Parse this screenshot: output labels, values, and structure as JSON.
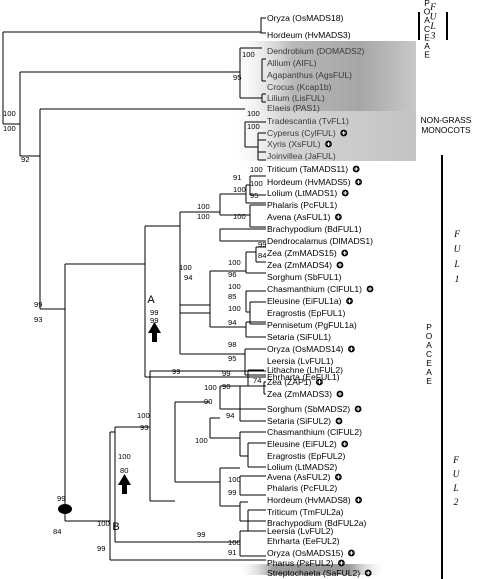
{
  "taxa": {
    "t0": "Oryza (OsMADS18)",
    "t1": "Hordeum (HvMADS3)",
    "t2": "Dendrobium (DOMADS2)",
    "t3": "Allium (AIFL)",
    "t4": "Agapanthus (AgsFUL)",
    "t5": "Crocus (Kcap1b)",
    "t6": "Lilium (LisFUL)",
    "t7": "Elaeis (PAS1)",
    "t8": "Tradescantia (TvFL1)",
    "t9": "Cyperus (CylFUL)",
    "t10": "Xyris (XsFUL)",
    "t11": "Joinvillea (JaFUL)",
    "t12": "Triticum (TaMADS11)",
    "t13": "Hordeum (HvMADS5)",
    "t14": "Lolium (LtMADS1)",
    "t15": "Phalaris (PcFUL1)",
    "t16": "Avena (AsFUL1)",
    "t17": "Brachypodium (BdFUL1)",
    "t18": "Dendrocalamus (DlMADS1)",
    "t19": "Zea (ZmMADS15)",
    "t20": "Zea (ZmMADS4)",
    "t21": "Sorghum (SbFUL1)",
    "t22": "Chasmanthium (ClFUL1)",
    "t23": "Eleusine (EiFUL1a)",
    "t24": "Eragrostis (EpFUL1)",
    "t25": "Pennisetum (PgFUL1a)",
    "t26": "Setaria (SiFUL1)",
    "t27": "Oryza (OsMADS14)",
    "t28": "Leersia (LvFUL1)",
    "t29": "Ehrharta (EeFUL1)",
    "t30": "Lithachne (LhFUL2)",
    "t31": "Zea (ZAP1)",
    "t32": "Zea (ZmMADS3)",
    "t33": "Sorghum (SbMADS2)",
    "t34": "Setaria (SiFUL2)",
    "t35": "Chasmanthium (ClFUL2)",
    "t36": "Eleusine (EiFUL2)",
    "t37": "Eragrostis (EpFUL2)",
    "t38": "Lolium (LtMADS2)",
    "t39": "Avena (AsFUL2)",
    "t40": "Phalaris (PcFUL2)",
    "t41": "Hordeum (HvMADS8)",
    "t42": "Triticum (TmFUL2a)",
    "t43": "Brachypodium (BdFUL2a)",
    "t44": "Leersia (LvFUL2)",
    "t45": "Ehrharta (EeFUL2)",
    "t46": "Oryza (OsMADS15)",
    "t47": "Pharus (PsFUL2)",
    "t48": "Streptochaeta (SaFUL2)"
  },
  "support": {
    "s1": "100",
    "s2": "100",
    "s3": "100",
    "s4": "95",
    "s5": "92",
    "s6": "100",
    "s7": "100",
    "s8": "91",
    "s9": "100",
    "s10": "100",
    "s11": "95",
    "s12": "100",
    "s13": "100",
    "s14": "100",
    "s15": "100",
    "s16": "99",
    "s17": "84",
    "s18": "100",
    "s19": "96",
    "s20": "100",
    "s21": "85",
    "s22": "100",
    "s23": "94",
    "s24": "100",
    "s25": "94",
    "s26": "98",
    "s27": "95",
    "s28": "99",
    "s29": "99",
    "s30": "93",
    "s31": "99",
    "s32": "99",
    "s33": "99",
    "s34": "84",
    "s35": "74",
    "s36": "99",
    "s37": "90",
    "s38": "100",
    "s39": "90",
    "s40": "94",
    "s41": "100",
    "s42": "100",
    "s43": "99",
    "s44": "100",
    "s45": "93",
    "s46": "99",
    "s47": "100",
    "s48": "91",
    "s49": "100",
    "s50": "80",
    "s51": "100",
    "s52": "99"
  },
  "nodes": {
    "A": "A",
    "B": "B"
  },
  "groups": {
    "poaceae_top": "POACEAE",
    "ful3": "FUL3",
    "non_grass_1": "NON-GRASS",
    "non_grass_2": "MONOCOTS",
    "ful1": "FUL1",
    "poaceae_mid": "POACEAE",
    "ful2": "FUL2"
  }
}
